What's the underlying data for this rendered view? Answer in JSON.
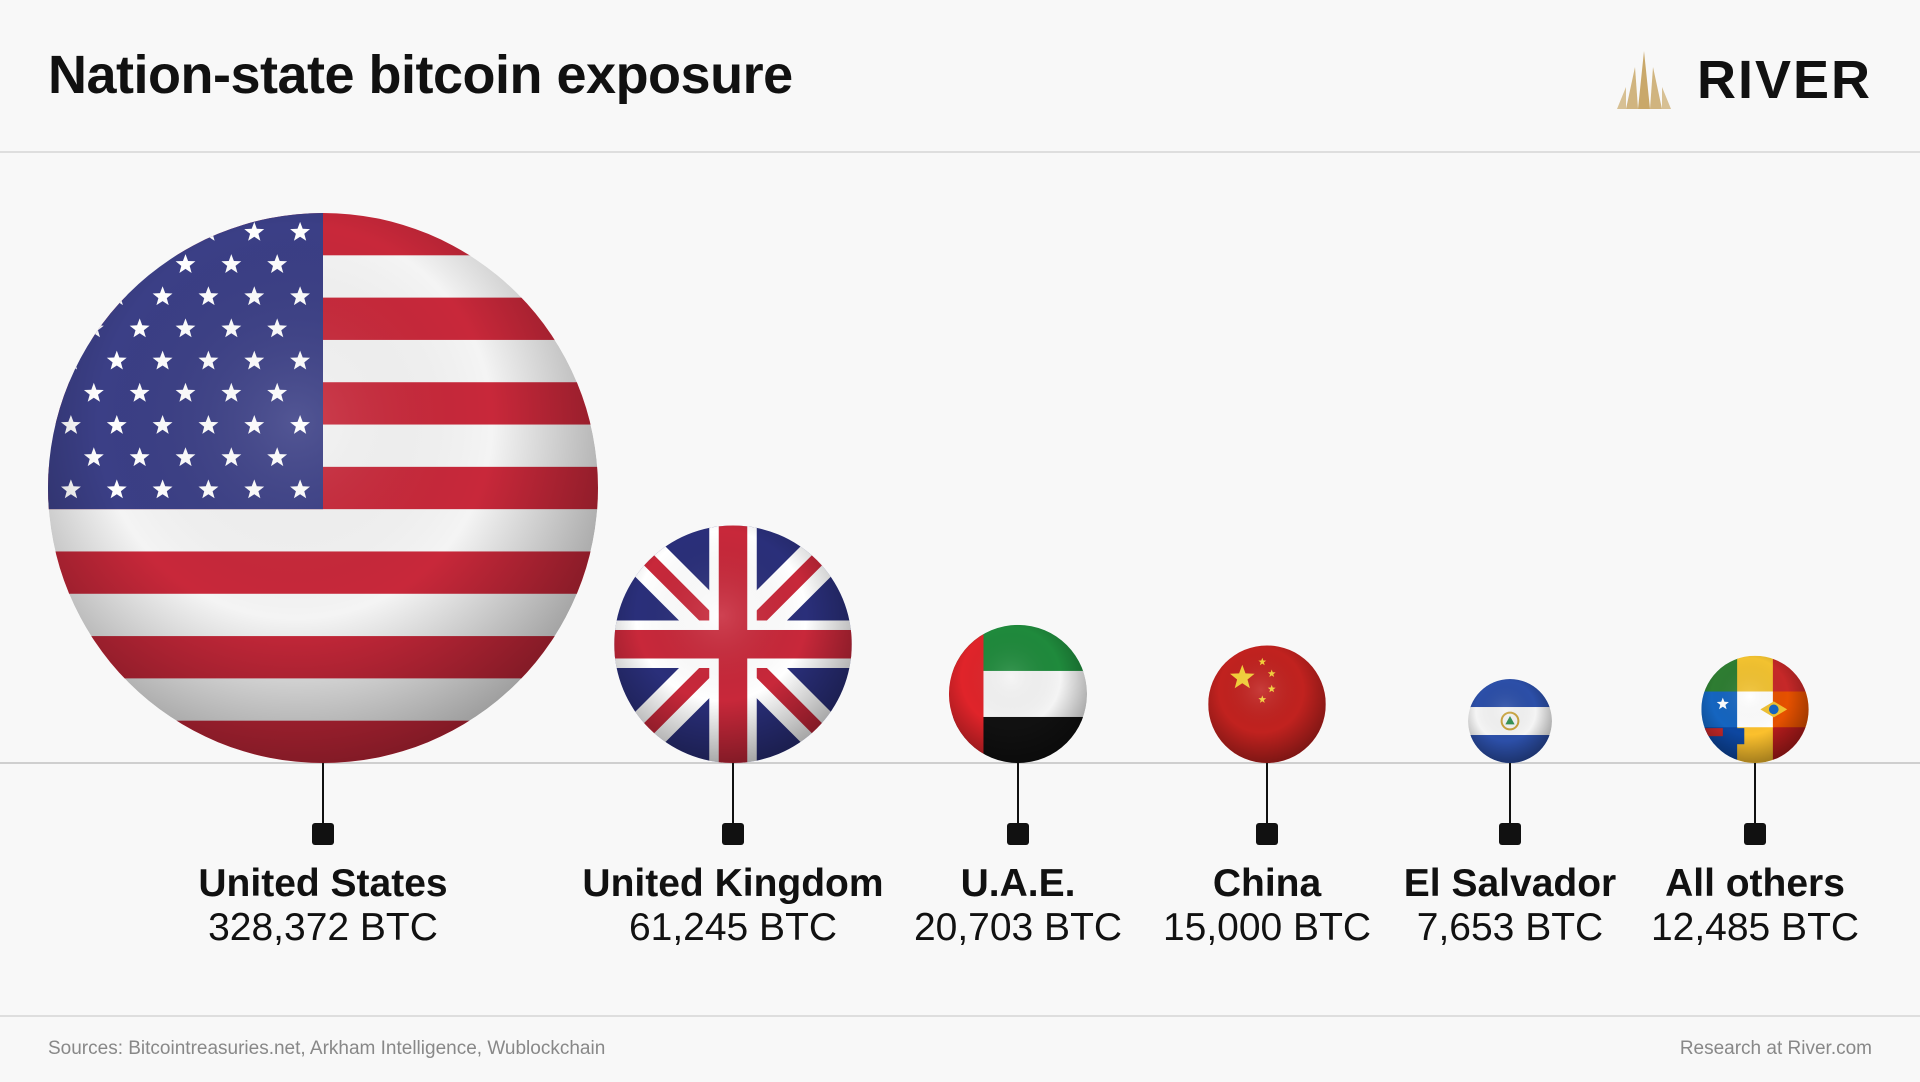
{
  "header": {
    "title": "Nation-state bitcoin exposure",
    "brand": "RIVER",
    "brand_icon": "river-mountain-logo-icon",
    "brand_color": "#c9a86a"
  },
  "chart_data": {
    "type": "bubble",
    "title": "Nation-state bitcoin exposure",
    "unit": "BTC",
    "categories": [
      "United States",
      "United Kingdom",
      "U.A.E.",
      "China",
      "El Salvador",
      "All others"
    ],
    "values": [
      328372,
      61245,
      20703,
      15000,
      7653,
      12485
    ],
    "value_labels": [
      "328,372 BTC",
      "61,245 BTC",
      "20,703 BTC",
      "15,000 BTC",
      "7,653 BTC",
      "12,485 BTC"
    ],
    "flags": [
      "us-flag",
      "uk-flag",
      "uae-flag",
      "china-flag",
      "el-salvador-flag",
      "mixed-flags-globe"
    ]
  },
  "footer": {
    "sources": "Sources: Bitcointreasuries.net, Arkham Intelligence, Wublockchain",
    "credit": "Research at River.com"
  },
  "colors": {
    "background": "#f8f8f8",
    "text": "#111111",
    "muted": "#888888",
    "us_red": "#c8283a",
    "us_blue": "#3b3f86",
    "uk_blue": "#2a2f7a",
    "uae_green": "#1f8a3c",
    "china_red": "#c1221f",
    "china_yellow": "#f6d23a",
    "sv_blue": "#2c4fa8"
  }
}
